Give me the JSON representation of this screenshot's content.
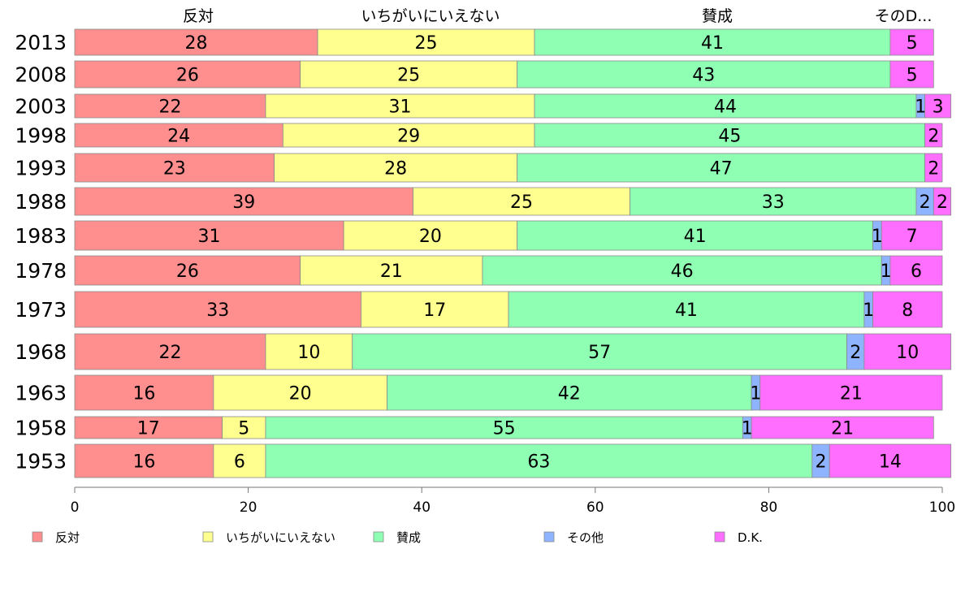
{
  "chart_data": {
    "type": "bar",
    "orientation": "horizontal",
    "stacked": true,
    "categories": [
      "2013",
      "2008",
      "2003",
      "1998",
      "1993",
      "1988",
      "1983",
      "1978",
      "1973",
      "1968",
      "1963",
      "1958",
      "1953"
    ],
    "series": [
      {
        "name": "反対",
        "color": "#ff8f8f",
        "values": [
          28,
          26,
          22,
          24,
          23,
          39,
          31,
          26,
          33,
          22,
          16,
          17,
          16
        ]
      },
      {
        "name": "いちがいにいえない",
        "color": "#ffff8f",
        "values": [
          25,
          25,
          31,
          29,
          28,
          25,
          20,
          21,
          17,
          10,
          20,
          5,
          6
        ]
      },
      {
        "name": "賛成",
        "color": "#8fffb4",
        "values": [
          41,
          43,
          44,
          45,
          47,
          33,
          41,
          46,
          41,
          57,
          42,
          55,
          63
        ]
      },
      {
        "name": "その他",
        "color": "#8fb4ff",
        "values": [
          0,
          0,
          1,
          0,
          0,
          2,
          1,
          1,
          1,
          2,
          1,
          1,
          2
        ]
      },
      {
        "name": "D.K.",
        "color": "#ff6eff",
        "values": [
          5,
          5,
          3,
          2,
          2,
          2,
          7,
          6,
          8,
          10,
          21,
          21,
          14
        ]
      }
    ],
    "xlim": [
      0,
      100
    ],
    "xticks": [
      "0",
      "20",
      "40",
      "60",
      "80",
      "100"
    ],
    "top_labels": [
      "反対",
      "いちがいにいえない",
      "賛成",
      "そのD..."
    ],
    "legend_position": "bottom",
    "grid": false
  }
}
